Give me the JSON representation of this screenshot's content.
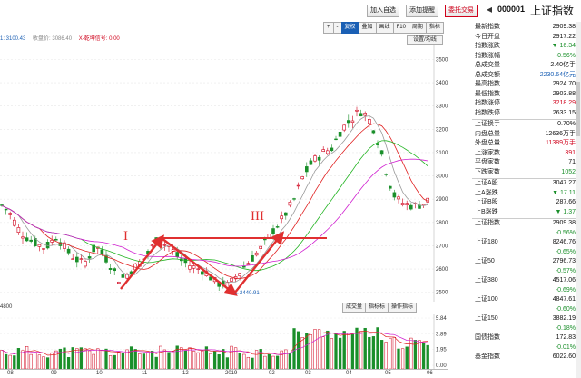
{
  "header": {
    "buttons": [
      "加入自选",
      "添加提醒",
      "委托交易"
    ],
    "code": "000001",
    "index_name": "上证指数"
  },
  "legend": [
    "1: 3100.43",
    "收盘价: 3086.40",
    "X-乾坤信号: 0.00"
  ],
  "toolbar": {
    "buttons": [
      "+",
      "-",
      "复权",
      "叠加",
      "画线",
      "F10",
      "周期",
      "指标"
    ],
    "active": "复权",
    "settings": "设置/均线"
  },
  "sub_toolbar": {
    "left": "4800",
    "buttons": [
      "成交量",
      "指标标",
      "操作指标"
    ]
  },
  "annotations": {
    "i": "I",
    "ii": "II",
    "iii": "III",
    "low": "2440.91"
  },
  "price_axis": [
    "3500.00",
    "3400.00",
    "3300.00",
    "3200.00",
    "3100.00",
    "3000.00",
    "2900.00",
    "2800.00",
    "2700.00",
    "2600.00",
    "2500.00"
  ],
  "volume_axis": [
    "5.84",
    "3.89",
    "1.95",
    "0.00"
  ],
  "x_axis": [
    "08",
    "09",
    "10",
    "11",
    "12",
    "2019",
    "02",
    "03",
    "04",
    "05",
    "06"
  ],
  "quote": [
    {
      "label": "最新指数",
      "value": "2909.38",
      "color": "blk"
    },
    {
      "label": "今日开盘",
      "value": "2917.22",
      "color": "blk"
    },
    {
      "label": "指数涨跌",
      "value": "▼ 16.34",
      "color": "green"
    },
    {
      "label": "指数涨幅",
      "value": "-0.56%",
      "color": "green"
    },
    {
      "label": "总成交量",
      "value": "2.40亿手",
      "color": "blk"
    },
    {
      "label": "总成交额",
      "value": "2230.64亿元",
      "color": "blue"
    },
    {
      "label": "最高指数",
      "value": "2924.70",
      "color": "blk"
    },
    {
      "label": "最低指数",
      "value": "2903.88",
      "color": "blk"
    },
    {
      "label": "指数涨停",
      "value": "3218.29",
      "color": "red"
    },
    {
      "label": "指数跌停",
      "value": "2633.15",
      "color": "blk"
    }
  ],
  "quote2": [
    {
      "label": "上证换手",
      "value": "0.70%",
      "color": "blk"
    },
    {
      "label": "内盘总量",
      "value": "12636万手",
      "color": "blk"
    },
    {
      "label": "外盘总量",
      "value": "11389万手",
      "color": "red"
    },
    {
      "label": "上涨家数",
      "value": "391",
      "color": "red"
    },
    {
      "label": "平盘家数",
      "value": "71",
      "color": "blk"
    },
    {
      "label": "下跌家数",
      "value": "1052",
      "color": "green"
    }
  ],
  "quote3": [
    {
      "label": "上证A股",
      "value": "3047.27",
      "color": "blk"
    },
    {
      "label": "上A涨跌",
      "value": "▼ 17.11",
      "color": "green"
    },
    {
      "label": "上证B股",
      "value": "287.66",
      "color": "blk"
    },
    {
      "label": "上B涨跌",
      "value": "▼ 1.37",
      "color": "green"
    }
  ],
  "indices": [
    {
      "label": "上证指数",
      "value": "2909.38",
      "change": "-0.56%"
    },
    {
      "label": "上证180",
      "value": "8246.76",
      "change": "-0.65%"
    },
    {
      "label": "上证50",
      "value": "2796.73",
      "change": "-0.57%"
    },
    {
      "label": "上证380",
      "value": "4517.06",
      "change": "-0.69%"
    },
    {
      "label": "上证100",
      "value": "4847.61",
      "change": "-0.60%"
    },
    {
      "label": "上证150",
      "value": "3882.19",
      "change": "-0.18%"
    },
    {
      "label": "国债指数",
      "value": "172.83",
      "change": "-0.01%"
    },
    {
      "label": "基金指数",
      "value": "6022.60",
      "change": ""
    }
  ]
}
